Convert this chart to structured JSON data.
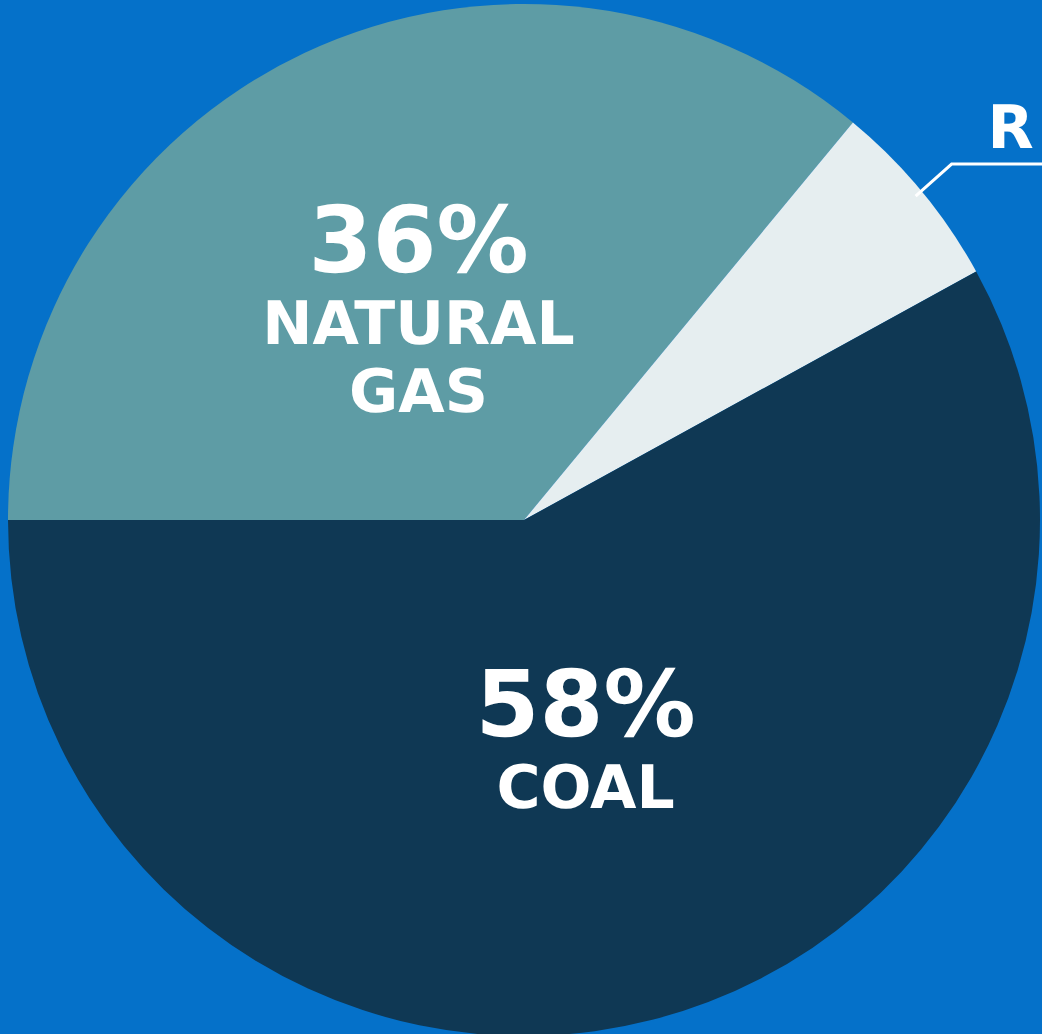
{
  "chart_data": {
    "type": "pie",
    "categories": [
      "NATURAL GAS",
      "R",
      "COAL"
    ],
    "values": [
      36,
      6,
      58
    ],
    "colors": [
      "#5e9ca5",
      "#e6eef0",
      "#0f3854"
    ],
    "value_labels": [
      "36%",
      null,
      "58%"
    ]
  }
}
